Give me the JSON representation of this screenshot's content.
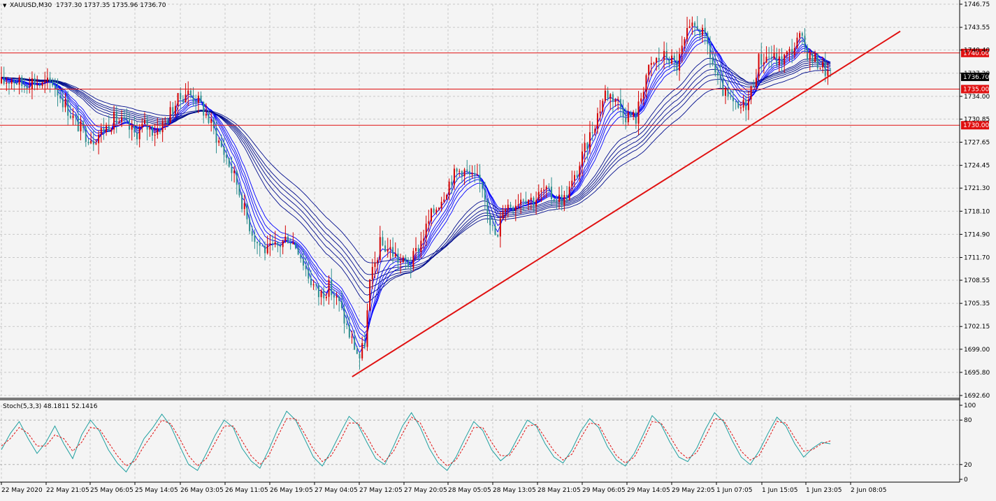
{
  "header": {
    "symbol_label": "XAUUSD,M30",
    "ohlc_text": "1737.30 1737.35 1735.96 1736.70",
    "dropdown_glyph": "▼"
  },
  "indicator": {
    "label": "Stoch(5,3,3) 48.1811 52.1416",
    "levels": [
      {
        "label": "100",
        "value": 100
      },
      {
        "label": "80",
        "value": 80
      },
      {
        "label": "20",
        "value": 20
      },
      {
        "label": "0",
        "value": 0
      }
    ]
  },
  "colors": {
    "background": "#f4f4f4",
    "grid": "#c8c8c8",
    "bull_candle": "#d40000",
    "bear_candle": "#2f8f8f",
    "ma_ribbon": "#000c8c",
    "ma_fast": "#0000ff",
    "trendline": "#e01010",
    "hline": "#e01010",
    "price_tag_bg": "#e01010",
    "current_tag_bg": "#000000",
    "stoch_main": "#20a0a0",
    "stoch_signal": "#e01010"
  },
  "chart_data": {
    "type": "candlestick",
    "title": "XAUUSD,M30",
    "y_axis": {
      "range": [
        1692.6,
        1746.75
      ],
      "ticks": [
        "1746.75",
        "1743.55",
        "1740.40",
        "1737.20",
        "1734.00",
        "1730.85",
        "1727.65",
        "1724.45",
        "1721.30",
        "1718.10",
        "1714.90",
        "1711.70",
        "1708.55",
        "1705.35",
        "1702.15",
        "1699.00",
        "1695.80",
        "1692.60"
      ]
    },
    "x_axis": {
      "ticks": [
        "22 May 2020",
        "22 May 21:05",
        "25 May 06:05",
        "25 May 14:05",
        "26 May 03:05",
        "26 May 11:05",
        "26 May 19:05",
        "27 May 04:05",
        "27 May 12:05",
        "27 May 20:05",
        "28 May 05:05",
        "28 May 13:05",
        "28 May 21:05",
        "29 May 06:05",
        "29 May 14:05",
        "29 May 22:05",
        "1 Jun 07:05",
        "1 Jun 15:05",
        "1 Jun 23:05",
        "2 Jun 08:05"
      ]
    },
    "price_path": [
      [
        0,
        1735.8
      ],
      [
        4,
        1736.5
      ],
      [
        8,
        1735.6
      ],
      [
        12,
        1736.2
      ],
      [
        16,
        1735.5
      ],
      [
        20,
        1736.0
      ],
      [
        24,
        1733.5
      ],
      [
        28,
        1731.0
      ],
      [
        32,
        1729.0
      ],
      [
        36,
        1728.2
      ],
      [
        40,
        1729.5
      ],
      [
        44,
        1730.8
      ],
      [
        48,
        1730.2
      ],
      [
        52,
        1728.8
      ],
      [
        56,
        1730.0
      ],
      [
        60,
        1729.2
      ],
      [
        64,
        1730.5
      ],
      [
        68,
        1733.0
      ],
      [
        72,
        1734.6
      ],
      [
        76,
        1733.8
      ],
      [
        80,
        1731.5
      ],
      [
        84,
        1728.5
      ],
      [
        88,
        1725.5
      ],
      [
        92,
        1722.0
      ],
      [
        96,
        1717.0
      ],
      [
        100,
        1713.8
      ],
      [
        104,
        1712.5
      ],
      [
        108,
        1713.2
      ],
      [
        112,
        1714.6
      ],
      [
        116,
        1713.0
      ],
      [
        120,
        1709.2
      ],
      [
        124,
        1706.5
      ],
      [
        128,
        1707.6
      ],
      [
        132,
        1705.2
      ],
      [
        136,
        1701.0
      ],
      [
        140,
        1697.8
      ],
      [
        142,
        1700.0
      ],
      [
        144,
        1708.0
      ],
      [
        148,
        1713.5
      ],
      [
        152,
        1712.8
      ],
      [
        156,
        1711.0
      ],
      [
        160,
        1710.8
      ],
      [
        164,
        1714.0
      ],
      [
        168,
        1717.5
      ],
      [
        172,
        1720.0
      ],
      [
        176,
        1722.8
      ],
      [
        180,
        1724.0
      ],
      [
        184,
        1722.6
      ],
      [
        188,
        1721.8
      ],
      [
        192,
        1715.5
      ],
      [
        194,
        1714.2
      ],
      [
        196,
        1718.8
      ],
      [
        200,
        1719.2
      ],
      [
        204,
        1720.3
      ],
      [
        208,
        1719.6
      ],
      [
        212,
        1720.9
      ],
      [
        216,
        1720.0
      ],
      [
        220,
        1719.8
      ],
      [
        224,
        1722.5
      ],
      [
        228,
        1726.5
      ],
      [
        232,
        1730.5
      ],
      [
        236,
        1734.5
      ],
      [
        240,
        1733.8
      ],
      [
        244,
        1731.5
      ],
      [
        248,
        1731.0
      ],
      [
        252,
        1737.0
      ],
      [
        256,
        1739.0
      ],
      [
        260,
        1739.6
      ],
      [
        264,
        1738.2
      ],
      [
        268,
        1742.5
      ],
      [
        272,
        1743.9
      ],
      [
        276,
        1741.0
      ],
      [
        280,
        1736.0
      ],
      [
        284,
        1733.5
      ],
      [
        288,
        1732.0
      ],
      [
        292,
        1733.5
      ],
      [
        296,
        1739.0
      ],
      [
        300,
        1739.6
      ],
      [
        304,
        1738.8
      ],
      [
        308,
        1740.0
      ],
      [
        312,
        1742.0
      ],
      [
        316,
        1739.5
      ],
      [
        320,
        1738.5
      ],
      [
        324,
        1736.7
      ]
    ],
    "horizontal_lines": [
      {
        "value": 1740.0,
        "label": "1740.00"
      },
      {
        "value": 1735.0,
        "label": "1735.00"
      },
      {
        "value": 1730.0,
        "label": "1730.00"
      }
    ],
    "current_price": {
      "value": 1736.7,
      "label": "1736.70"
    },
    "trendline": {
      "from_bar": 136,
      "from_price": 1695.2,
      "to_bar": 334,
      "to_price": 1743.0
    },
    "stochastic": {
      "main": [
        40,
        62,
        78,
        55,
        35,
        50,
        72,
        48,
        28,
        60,
        80,
        65,
        40,
        22,
        10,
        30,
        55,
        70,
        88,
        72,
        45,
        20,
        12,
        35,
        60,
        80,
        70,
        42,
        25,
        15,
        40,
        68,
        92,
        80,
        55,
        30,
        18,
        38,
        62,
        85,
        74,
        50,
        28,
        20,
        45,
        72,
        90,
        70,
        42,
        22,
        12,
        30,
        55,
        78,
        66,
        40,
        25,
        35,
        58,
        80,
        72,
        48,
        30,
        22,
        40,
        65,
        82,
        70,
        44,
        26,
        18,
        35,
        60,
        86,
        74,
        50,
        30,
        24,
        42,
        68,
        90,
        78,
        52,
        30,
        20,
        38,
        62,
        84,
        72,
        48,
        30,
        42,
        50,
        48
      ],
      "signal": [
        45,
        55,
        70,
        62,
        45,
        45,
        60,
        55,
        38,
        50,
        70,
        68,
        50,
        32,
        18,
        25,
        45,
        62,
        80,
        75,
        55,
        32,
        18,
        28,
        50,
        72,
        72,
        52,
        32,
        20,
        32,
        58,
        82,
        82,
        62,
        40,
        24,
        32,
        52,
        76,
        76,
        58,
        36,
        24,
        38,
        62,
        84,
        76,
        52,
        30,
        18,
        26,
        46,
        70,
        70,
        50,
        32,
        32,
        50,
        72,
        74,
        56,
        38,
        26,
        34,
        56,
        76,
        74,
        52,
        32,
        22,
        30,
        52,
        78,
        76,
        58,
        38,
        28,
        36,
        58,
        82,
        80,
        60,
        38,
        26,
        32,
        54,
        78,
        76,
        56,
        38,
        40,
        48,
        52
      ]
    }
  }
}
